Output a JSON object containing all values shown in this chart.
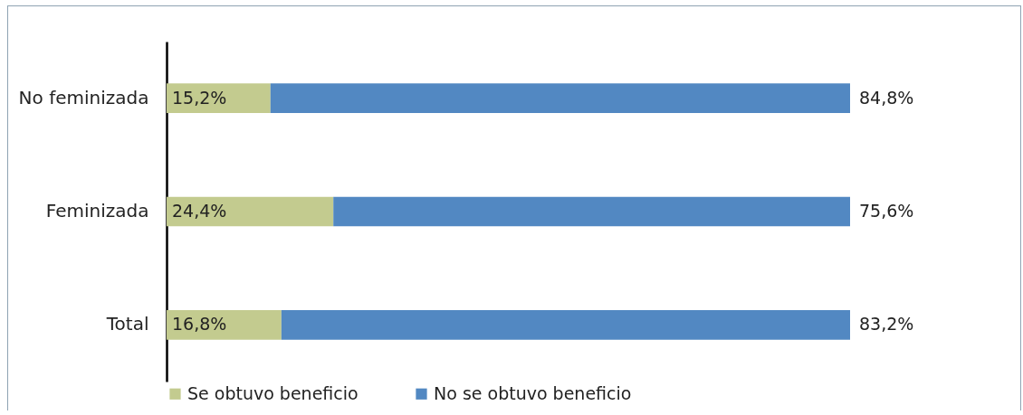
{
  "chart_data": {
    "type": "bar",
    "orientation": "horizontal",
    "stacked": true,
    "categories": [
      "No feminizada",
      "Feminizada",
      "Total"
    ],
    "series": [
      {
        "name": "Se obtuvo beneficio",
        "color": "#c3cb8f",
        "values": [
          15.2,
          24.4,
          16.8
        ],
        "value_labels": [
          "15,2%",
          "24,4%",
          "16,8%"
        ]
      },
      {
        "name": "No se obtuvo beneficio",
        "color": "#5288c2",
        "values": [
          84.8,
          75.6,
          83.2
        ],
        "value_labels": [
          "84,8%",
          "75,6%",
          "83,2%"
        ]
      }
    ],
    "xlim": [
      0,
      100
    ],
    "tick_labels": "y",
    "legend": "bottom"
  }
}
